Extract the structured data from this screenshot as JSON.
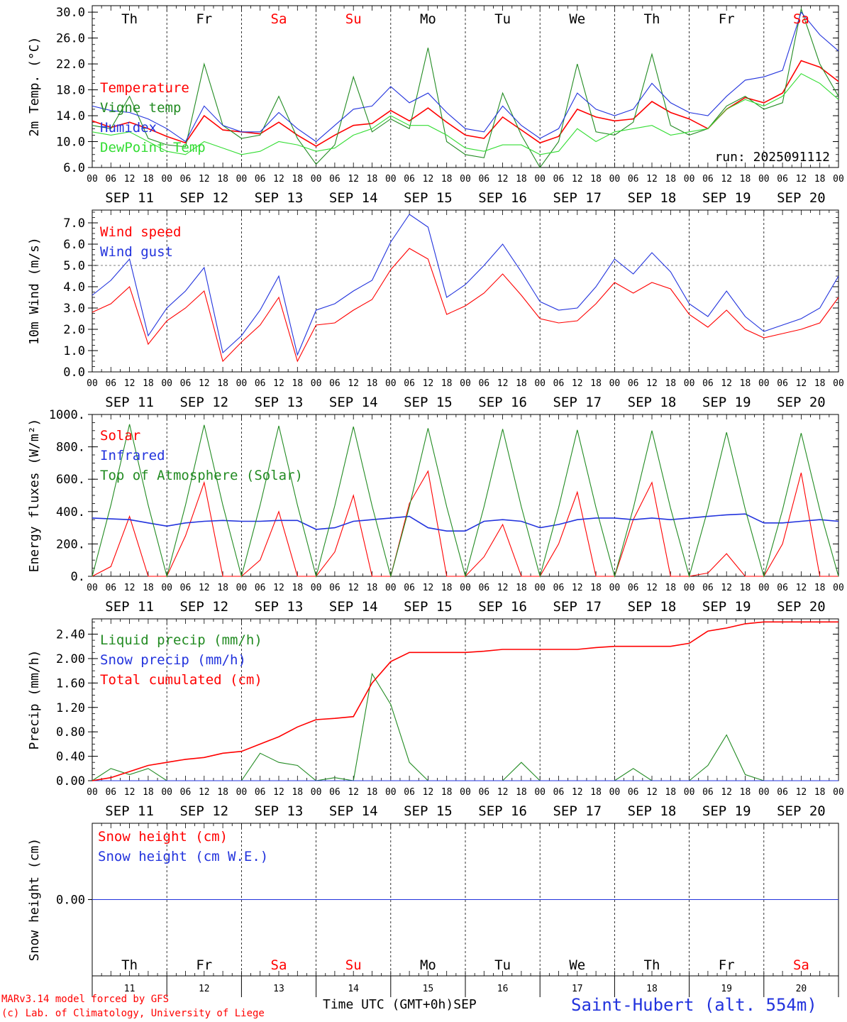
{
  "days": [
    "11",
    "12",
    "13",
    "14",
    "15",
    "16",
    "17",
    "18",
    "19",
    "20"
  ],
  "weekdays": [
    "Th",
    "Fr",
    "Sa",
    "Su",
    "Mo",
    "Tu",
    "We",
    "Th",
    "Fr",
    "Sa"
  ],
  "weekday_colors": [
    "#000000",
    "#000000",
    "#ff0000",
    "#ff0000",
    "#000000",
    "#000000",
    "#000000",
    "#000000",
    "#000000",
    "#ff0000"
  ],
  "date_labels": [
    "SEP 11",
    "SEP 12",
    "SEP 13",
    "SEP 14",
    "SEP 15",
    "SEP 16",
    "SEP 17",
    "SEP 18",
    "SEP 19",
    "SEP 20"
  ],
  "hour_ticks": [
    "00",
    "06",
    "12",
    "18"
  ],
  "last_hour": "00",
  "footer": {
    "model_line": "MARv3.14 model forced by GFS",
    "lab_line": "(c) Lab. of Climatology, University of Liege",
    "time_label": "Time UTC (GMT+0h)",
    "month_label": "SEP",
    "station": "Saint-Hubert (alt. 554m)"
  },
  "chart_data": [
    {
      "type": "line",
      "ylabel": "2m Temp. (°C)",
      "ylim": [
        6.0,
        31.0
      ],
      "yticks": [
        "6.0",
        "10.0",
        "14.0",
        "18.0",
        "22.0",
        "26.0",
        "30.0"
      ],
      "run_label": "run: 2025091112",
      "x_hours": [
        0,
        6,
        12,
        18,
        24,
        30,
        36,
        42,
        48,
        54,
        60,
        66,
        72,
        78,
        84,
        90,
        96,
        102,
        108,
        114,
        120,
        126,
        132,
        138,
        144,
        150,
        156,
        162,
        168,
        174,
        180,
        186,
        192,
        198,
        204,
        210,
        216,
        222,
        228,
        234,
        240
      ],
      "series": [
        {
          "name": "Temperature",
          "color": "#ff0000",
          "values": [
            13.2,
            12.2,
            13.0,
            12.0,
            10.8,
            9.8,
            14.0,
            11.8,
            11.5,
            11.2,
            13.0,
            11.0,
            9.3,
            11.0,
            12.5,
            12.8,
            14.8,
            13.2,
            15.2,
            13.0,
            11.0,
            10.5,
            13.8,
            11.8,
            9.8,
            10.8,
            15.0,
            13.8,
            13.2,
            13.5,
            16.2,
            14.5,
            13.5,
            12.0,
            15.0,
            16.8,
            16.0,
            17.5,
            22.5,
            21.5,
            19.3
          ]
        },
        {
          "name": "Vigne temp",
          "color": "#228b22",
          "values": [
            12.5,
            12.0,
            17.0,
            10.5,
            9.5,
            9.2,
            22.0,
            12.5,
            10.5,
            11.0,
            17.0,
            10.5,
            6.5,
            9.5,
            20.0,
            11.5,
            13.5,
            12.0,
            24.5,
            10.0,
            8.0,
            7.5,
            17.5,
            11.0,
            6.0,
            10.0,
            22.0,
            11.5,
            11.0,
            13.0,
            23.5,
            12.5,
            11.0,
            12.0,
            15.5,
            17.0,
            15.0,
            16.0,
            30.5,
            22.0,
            17.0
          ]
        },
        {
          "name": "Humidex",
          "color": "#2233dd",
          "values": [
            15.5,
            14.8,
            14.5,
            13.5,
            12.0,
            10.0,
            15.5,
            12.5,
            11.5,
            11.5,
            14.5,
            12.0,
            10.0,
            12.5,
            15.0,
            15.5,
            18.5,
            16.0,
            17.5,
            14.5,
            12.0,
            11.5,
            15.5,
            12.5,
            10.5,
            12.0,
            17.5,
            15.0,
            14.0,
            15.0,
            19.0,
            16.0,
            14.5,
            14.0,
            17.0,
            19.5,
            20.0,
            21.0,
            30.0,
            26.5,
            24.0
          ]
        },
        {
          "name": "DewPoint Temp",
          "color": "#33dd33",
          "values": [
            11.5,
            11.0,
            11.5,
            10.0,
            8.5,
            8.0,
            10.0,
            9.0,
            8.0,
            8.5,
            10.0,
            9.5,
            8.5,
            9.0,
            11.0,
            12.0,
            14.0,
            12.5,
            12.5,
            11.0,
            9.0,
            8.5,
            9.5,
            9.5,
            8.0,
            8.5,
            12.0,
            10.0,
            11.5,
            12.0,
            12.5,
            11.0,
            11.5,
            12.0,
            15.0,
            16.5,
            15.5,
            17.0,
            20.5,
            19.0,
            16.5
          ]
        }
      ],
      "label_colors": [
        "#ff0000",
        "#228b22",
        "#2233dd",
        "#33dd33"
      ]
    },
    {
      "type": "line",
      "ylabel": "10m Wind (m/s)",
      "ylim": [
        0.0,
        7.6
      ],
      "yticks": [
        "0.0",
        "1.0",
        "2.0",
        "3.0",
        "4.0",
        "5.0",
        "6.0",
        "7.0"
      ],
      "reference_line": 5.0,
      "x_hours": [
        0,
        6,
        12,
        18,
        24,
        30,
        36,
        42,
        48,
        54,
        60,
        66,
        72,
        78,
        84,
        90,
        96,
        102,
        108,
        114,
        120,
        126,
        132,
        138,
        144,
        150,
        156,
        162,
        168,
        174,
        180,
        186,
        192,
        198,
        204,
        210,
        216,
        222,
        228,
        234,
        240
      ],
      "series": [
        {
          "name": "Wind speed",
          "color": "#ff0000",
          "values": [
            2.8,
            3.2,
            4.0,
            1.3,
            2.4,
            3.0,
            3.8,
            0.5,
            1.4,
            2.2,
            3.5,
            0.5,
            2.2,
            2.3,
            2.9,
            3.4,
            4.8,
            5.8,
            5.3,
            2.7,
            3.1,
            3.7,
            4.6,
            3.6,
            2.5,
            2.3,
            2.4,
            3.2,
            4.2,
            3.7,
            4.2,
            3.9,
            2.7,
            2.1,
            2.9,
            2.0,
            1.6,
            1.8,
            2.0,
            2.3,
            3.5
          ]
        },
        {
          "name": "Wind gust",
          "color": "#2233dd",
          "values": [
            3.6,
            4.3,
            5.3,
            1.7,
            3.0,
            3.8,
            4.9,
            0.9,
            1.7,
            2.9,
            4.5,
            0.8,
            2.9,
            3.2,
            3.8,
            4.3,
            6.1,
            7.4,
            6.8,
            3.5,
            4.1,
            5.0,
            6.0,
            4.7,
            3.3,
            2.9,
            3.0,
            4.0,
            5.3,
            4.6,
            5.6,
            4.7,
            3.2,
            2.6,
            3.8,
            2.6,
            1.9,
            2.2,
            2.5,
            3.0,
            4.5
          ]
        }
      ]
    },
    {
      "type": "line",
      "ylabel": "Energy fluxes (W/m²)",
      "ylim": [
        0,
        1000
      ],
      "yticks": [
        "0.",
        "200.",
        "400.",
        "600.",
        "800.",
        "1000."
      ],
      "x_hours": [
        0,
        6,
        12,
        18,
        24,
        30,
        36,
        42,
        48,
        54,
        60,
        66,
        72,
        78,
        84,
        90,
        96,
        102,
        108,
        114,
        120,
        126,
        132,
        138,
        144,
        150,
        156,
        162,
        168,
        174,
        180,
        186,
        192,
        198,
        204,
        210,
        216,
        222,
        228,
        234,
        240
      ],
      "series": [
        {
          "name": "Solar",
          "color": "#ff0000",
          "values": [
            0,
            60,
            370,
            0,
            0,
            250,
            580,
            0,
            0,
            100,
            400,
            0,
            0,
            150,
            500,
            0,
            0,
            450,
            650,
            0,
            0,
            120,
            320,
            0,
            0,
            200,
            520,
            0,
            0,
            350,
            580,
            0,
            0,
            20,
            140,
            0,
            0,
            200,
            640,
            0,
            0
          ]
        },
        {
          "name": "Infrared",
          "color": "#2233dd",
          "values": [
            360,
            355,
            350,
            330,
            310,
            330,
            340,
            345,
            340,
            340,
            345,
            345,
            290,
            300,
            340,
            350,
            360,
            370,
            300,
            280,
            280,
            340,
            350,
            340,
            300,
            320,
            350,
            360,
            360,
            350,
            360,
            350,
            360,
            370,
            380,
            385,
            330,
            330,
            340,
            350,
            340
          ]
        },
        {
          "name": "Top of Atmosphere (Solar)",
          "color": "#228b22",
          "values": [
            0,
            440,
            940,
            440,
            0,
            440,
            935,
            440,
            0,
            440,
            930,
            440,
            0,
            435,
            925,
            435,
            0,
            430,
            915,
            430,
            0,
            430,
            910,
            430,
            0,
            425,
            905,
            425,
            0,
            420,
            900,
            420,
            0,
            415,
            890,
            415,
            0,
            410,
            885,
            410,
            0
          ]
        }
      ],
      "label_colors": [
        "#ff0000",
        "#2233dd",
        "#228b22"
      ]
    },
    {
      "type": "line",
      "ylabel": "Precip (mm/h)",
      "ylim": [
        0.0,
        2.65
      ],
      "yticks": [
        "0.00",
        "0.40",
        "0.80",
        "1.20",
        "1.60",
        "2.00",
        "2.40"
      ],
      "x_hours": [
        0,
        6,
        12,
        18,
        24,
        30,
        36,
        42,
        48,
        54,
        60,
        66,
        72,
        78,
        84,
        90,
        96,
        102,
        108,
        114,
        120,
        126,
        132,
        138,
        144,
        150,
        156,
        162,
        168,
        174,
        180,
        186,
        192,
        198,
        204,
        210,
        216,
        222,
        228,
        234,
        240
      ],
      "series": [
        {
          "name": "Liquid precip (mm/h)",
          "color": "#228b22",
          "values": [
            0.0,
            0.2,
            0.1,
            0.2,
            0.0,
            0.0,
            0.0,
            0.0,
            0.0,
            0.45,
            0.3,
            0.25,
            0.0,
            0.05,
            0.0,
            1.75,
            1.25,
            0.3,
            0.0,
            0.0,
            0.0,
            0.0,
            0.0,
            0.3,
            0.0,
            0.0,
            0.0,
            0.0,
            0.0,
            0.2,
            0.0,
            0.0,
            0.0,
            0.25,
            0.75,
            0.1,
            0.0,
            0.0,
            0.0,
            0.0,
            0.0
          ]
        },
        {
          "name": "Snow precip (mm/h)",
          "color": "#2233dd",
          "values": [
            0,
            0,
            0,
            0,
            0,
            0,
            0,
            0,
            0,
            0,
            0,
            0,
            0,
            0,
            0,
            0,
            0,
            0,
            0,
            0,
            0,
            0,
            0,
            0,
            0,
            0,
            0,
            0,
            0,
            0,
            0,
            0,
            0,
            0,
            0,
            0,
            0,
            0,
            0,
            0,
            0
          ]
        },
        {
          "name": "Total cumulated (cm)",
          "color": "#ff0000",
          "values": [
            0.0,
            0.05,
            0.15,
            0.25,
            0.3,
            0.35,
            0.38,
            0.45,
            0.48,
            0.6,
            0.72,
            0.88,
            1.0,
            1.02,
            1.05,
            1.6,
            1.95,
            2.1,
            2.1,
            2.1,
            2.1,
            2.12,
            2.15,
            2.15,
            2.15,
            2.15,
            2.15,
            2.18,
            2.2,
            2.2,
            2.2,
            2.2,
            2.25,
            2.45,
            2.5,
            2.57,
            2.6,
            2.6,
            2.6,
            2.6,
            2.6
          ]
        }
      ],
      "label_colors": [
        "#228b22",
        "#2233dd",
        "#ff0000"
      ]
    },
    {
      "type": "line",
      "ylabel": "Snow height (cm)",
      "ylim": [
        -1.0,
        1.0
      ],
      "yticks": [
        "0.00"
      ],
      "x_hours": [
        0,
        240
      ],
      "series": [
        {
          "name": "Snow height (cm)",
          "color": "#ff0000",
          "values": [
            0.0,
            0.0
          ]
        },
        {
          "name": "Snow height (cm W.E.)",
          "color": "#2233dd",
          "values": [
            0.0,
            0.0
          ]
        }
      ],
      "label_colors": [
        "#ff0000",
        "#2233dd"
      ]
    }
  ]
}
